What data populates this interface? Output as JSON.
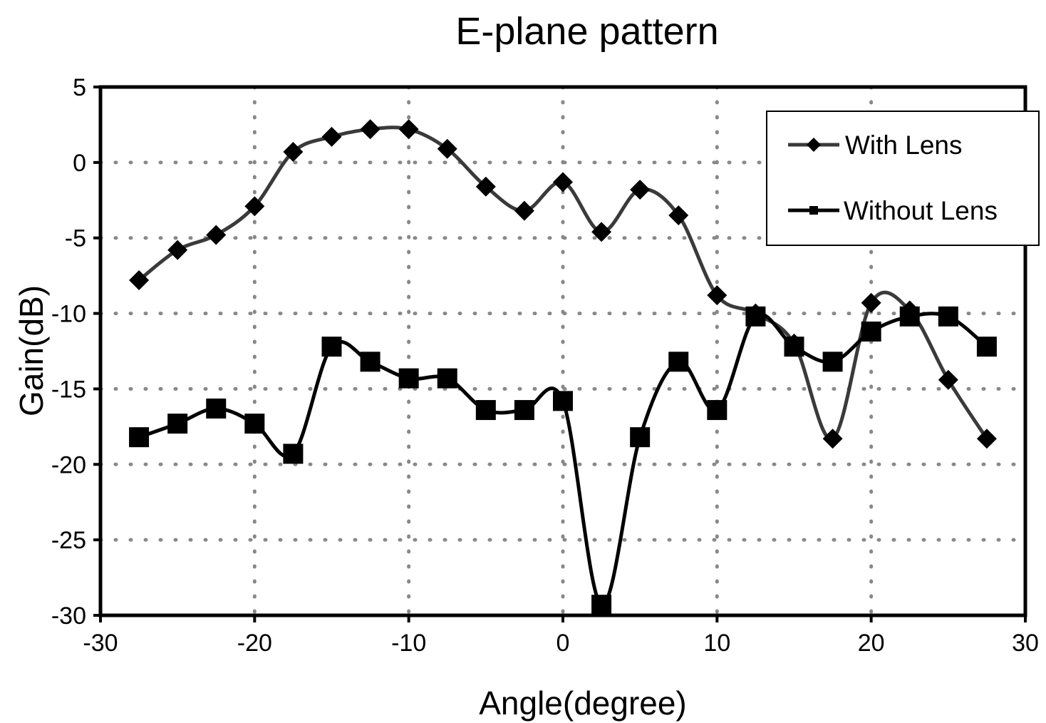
{
  "chart_data": {
    "type": "line",
    "title": "E-plane pattern",
    "xlabel": "Angle(degree)",
    "ylabel": "Gain(dB)",
    "xlim": [
      -30,
      30
    ],
    "ylim": [
      -30,
      5
    ],
    "xticks": [
      -30,
      -20,
      -10,
      0,
      10,
      20,
      30
    ],
    "yticks": [
      5,
      0,
      -5,
      -10,
      -15,
      -20,
      -25,
      -30
    ],
    "grid": "dotted",
    "legend_position": "top-right",
    "colors": {
      "with_lens": "#3a3a3a",
      "without_lens": "#000000"
    },
    "series": [
      {
        "name": "With Lens",
        "marker": "diamond",
        "x": [
          -27.5,
          -25,
          -22.5,
          -20,
          -17.5,
          -15,
          -12.5,
          -10,
          -7.5,
          -5,
          -2.5,
          0,
          2.5,
          5,
          7.5,
          10,
          12.5,
          15,
          17.5,
          20,
          22.5,
          25,
          27.5
        ],
        "y": [
          -7.8,
          -5.8,
          -4.8,
          -2.9,
          0.7,
          1.7,
          2.2,
          2.2,
          0.9,
          -1.6,
          -3.2,
          -1.3,
          -4.6,
          -1.8,
          -3.5,
          -8.8,
          -10.0,
          -12.0,
          -18.3,
          -9.3,
          -9.8,
          -14.4,
          -18.3
        ]
      },
      {
        "name": "Without Lens",
        "marker": "square",
        "x": [
          -27.5,
          -25,
          -22.5,
          -20,
          -17.5,
          -15,
          -12.5,
          -10,
          -7.5,
          -5,
          -2.5,
          0,
          2.5,
          5,
          7.5,
          10,
          12.5,
          15,
          17.5,
          20,
          22.5,
          25,
          27.5
        ],
        "y": [
          -18.2,
          -17.3,
          -16.3,
          -17.3,
          -19.3,
          -12.2,
          -13.2,
          -14.3,
          -14.3,
          -16.4,
          -16.4,
          -15.8,
          -29.3,
          -18.2,
          -13.2,
          -16.4,
          -10.2,
          -12.2,
          -13.2,
          -11.2,
          -10.2,
          -10.2,
          -12.2
        ]
      }
    ]
  }
}
